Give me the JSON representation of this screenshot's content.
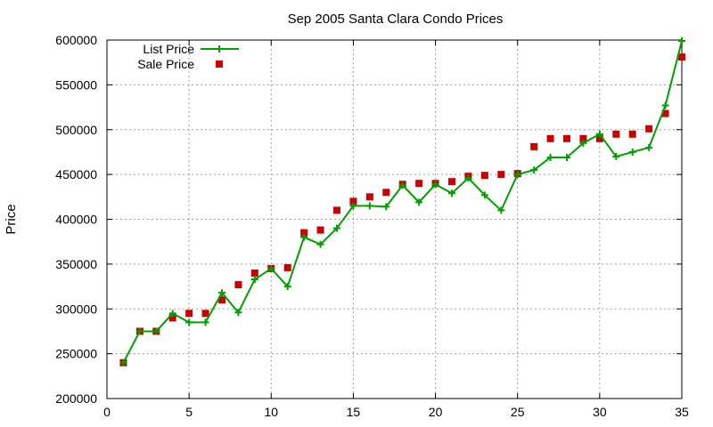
{
  "chart_data": {
    "type": "line",
    "title": "Sep 2005 Santa Clara Condo Prices",
    "xlabel": "",
    "ylabel": "Price",
    "xlim": [
      0,
      35
    ],
    "ylim": [
      200000,
      600000
    ],
    "x_ticks": [
      "0",
      "5",
      "10",
      "15",
      "20",
      "25",
      "30",
      "35"
    ],
    "y_ticks": [
      "200000",
      "250000",
      "300000",
      "350000",
      "400000",
      "450000",
      "500000",
      "550000",
      "600000"
    ],
    "grid": true,
    "legend_position": "top-left",
    "series": [
      {
        "name": "List Price",
        "style": "line-plus",
        "color": "#00a000",
        "x": [
          1,
          2,
          3,
          4,
          5,
          6,
          7,
          8,
          9,
          10,
          11,
          12,
          13,
          14,
          15,
          16,
          17,
          18,
          19,
          20,
          21,
          22,
          23,
          24,
          25,
          26,
          27,
          28,
          29,
          30,
          31,
          32,
          33,
          34,
          35
        ],
        "y": [
          240000,
          275000,
          275000,
          295000,
          285000,
          285000,
          318000,
          296000,
          333000,
          345000,
          325000,
          380000,
          372000,
          390000,
          415000,
          415000,
          414000,
          438000,
          419000,
          439000,
          429000,
          446000,
          427000,
          410000,
          450000,
          455000,
          469000,
          469000,
          485000,
          495000,
          470000,
          475000,
          480000,
          527000,
          599000
        ]
      },
      {
        "name": "Sale Price",
        "style": "square",
        "color": "#cc0000",
        "x": [
          1,
          2,
          3,
          4,
          5,
          6,
          7,
          8,
          9,
          10,
          11,
          12,
          13,
          14,
          15,
          16,
          17,
          18,
          19,
          20,
          21,
          22,
          23,
          24,
          25,
          26,
          27,
          28,
          29,
          30,
          31,
          32,
          33,
          34,
          35
        ],
        "y": [
          240000,
          275000,
          275000,
          290000,
          295000,
          295000,
          310000,
          327000,
          340000,
          345000,
          346000,
          385000,
          388000,
          410000,
          420000,
          425000,
          430000,
          439000,
          440000,
          440000,
          442000,
          448000,
          449000,
          450000,
          451000,
          481000,
          490000,
          490000,
          490000,
          490000,
          495000,
          495000,
          501000,
          518000,
          581000
        ]
      }
    ]
  }
}
